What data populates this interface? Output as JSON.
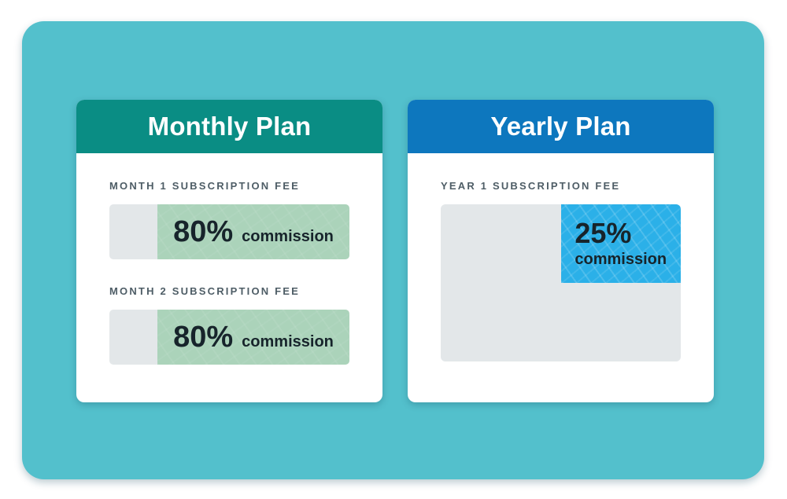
{
  "colors": {
    "page_bg": "#ffffff",
    "canvas_bg": "#53c0cc",
    "monthly_header_bg": "#0a8d84",
    "yearly_header_bg": "#0d77be",
    "header_text": "#ffffff",
    "label_color": "#4e5d66",
    "value_color": "#17242b",
    "bar_empty_bg": "#e3e7e9",
    "bar_fill_green": "#abd3ba",
    "area_fill_blue": "#2bb0e8"
  },
  "cards": [
    {
      "title": "Monthly Plan",
      "sections": [
        {
          "label": "MONTH 1 SUBSCRIPTION FEE",
          "value": "80%",
          "unit": "commission",
          "fill_percent": 80
        },
        {
          "label": "MONTH 2 SUBSCRIPTION FEE",
          "value": "80%",
          "unit": "commission",
          "fill_percent": 80
        }
      ]
    },
    {
      "title": "Yearly Plan",
      "sections": [
        {
          "label": "YEAR 1 SUBSCRIPTION FEE",
          "value": "25%",
          "unit": "commission",
          "fill_percent": 25
        }
      ]
    }
  ],
  "chart_data": [
    {
      "type": "bar",
      "title": "Monthly Plan",
      "categories": [
        "Month 1 subscription fee",
        "Month 2 subscription fee"
      ],
      "values": [
        80,
        80
      ],
      "unit": "% commission",
      "orientation": "horizontal",
      "xlim": [
        0,
        100
      ],
      "notes": "Green fill spans 80% of each bar width; remaining 20% shown gray on the left."
    },
    {
      "type": "area",
      "title": "Yearly Plan",
      "categories": [
        "Year 1 subscription fee"
      ],
      "values": [
        25
      ],
      "unit": "% commission",
      "notes": "Blue region covers 25% of box area (50% width x 50% height, anchored top-right)."
    }
  ]
}
